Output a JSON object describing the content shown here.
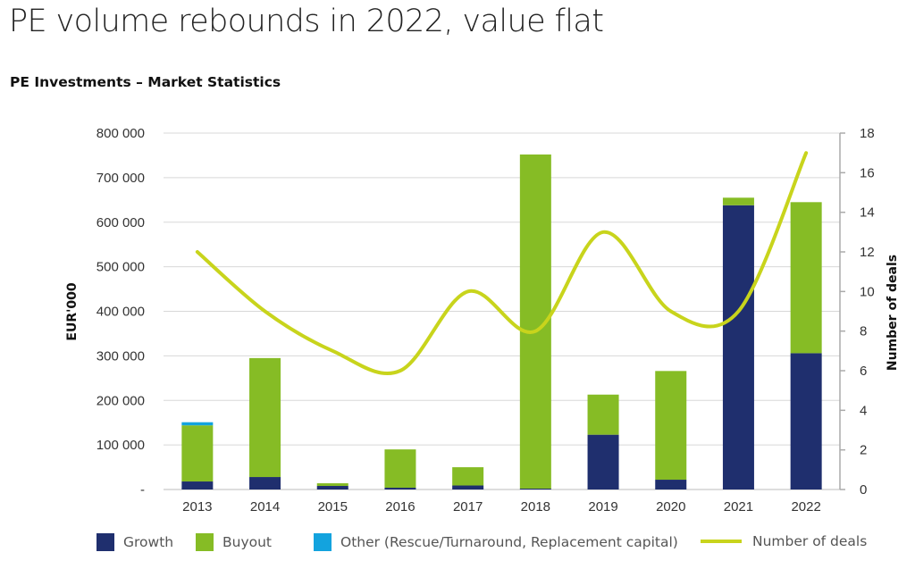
{
  "header": {
    "title": "PE volume rebounds in 2022, value flat",
    "subtitle": "PE Investments – Market Statistics"
  },
  "colors": {
    "growth": "#1f2f6e",
    "buyout": "#86bc25",
    "other": "#13a3de",
    "deals": "#c8d41c",
    "grid": "#d8d8d8"
  },
  "chart_data": {
    "type": "bar",
    "stacked": true,
    "categories": [
      "2013",
      "2014",
      "2015",
      "2016",
      "2017",
      "2018",
      "2019",
      "2020",
      "2021",
      "2022"
    ],
    "series": [
      {
        "name": "Growth",
        "values": [
          18000,
          28000,
          8000,
          4000,
          9000,
          2000,
          123000,
          22000,
          638000,
          306000
        ]
      },
      {
        "name": "Buyout",
        "values": [
          126000,
          267000,
          6000,
          86000,
          41000,
          750000,
          90000,
          244000,
          17000,
          339000
        ]
      },
      {
        "name": "Other (Rescue/Turnaround, Replacement capital)",
        "values": [
          7000,
          0,
          0,
          0,
          0,
          0,
          0,
          0,
          0,
          0
        ]
      }
    ],
    "line_series": {
      "name": "Number of deals",
      "axis": "right",
      "values": [
        12,
        9,
        7,
        6,
        10,
        8,
        13,
        9,
        9,
        17
      ]
    },
    "ylabel": "EUR'000",
    "y2label": "Number of deals",
    "ylim": [
      0,
      800000
    ],
    "y2lim": [
      0,
      18
    ],
    "yticks": [
      "-",
      "100 000",
      "200 000",
      "300 000",
      "400 000",
      "500 000",
      "600 000",
      "700 000",
      "800 000"
    ],
    "y2ticks": [
      "0",
      "2",
      "4",
      "6",
      "8",
      "10",
      "12",
      "14",
      "16",
      "18"
    ],
    "grid": true,
    "legend_position": "bottom"
  }
}
